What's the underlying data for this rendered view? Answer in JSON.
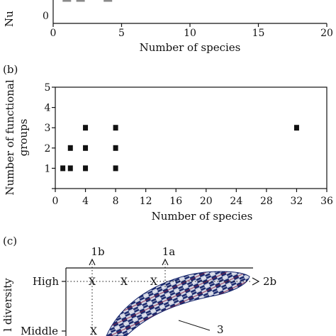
{
  "panels": {
    "a": {
      "y_tick_visible": "0",
      "ylabel_fragment": "Nu",
      "xlabel": "Number of species",
      "x_ticks": [
        "0",
        "5",
        "10",
        "15",
        "20"
      ],
      "markers_x": [
        1,
        2,
        4
      ]
    },
    "b": {
      "label": "(b)",
      "xlabel": "Number of species",
      "ylabel_line1": "Number of functional",
      "ylabel_line2": "groups",
      "x_ticks": [
        "0",
        "4",
        "8",
        "12",
        "16",
        "20",
        "24",
        "28",
        "32",
        "36"
      ],
      "y_ticks": [
        "1",
        "2",
        "3",
        "4",
        "5"
      ]
    },
    "c": {
      "label": "(c)",
      "arrow_1a": "1a",
      "arrow_1b": "1b",
      "arrow_2b": "2b",
      "ylabel_fragment": "l diversity",
      "y_high": "High",
      "y_middle": "Middle",
      "marker_x": "X",
      "callout": "3"
    }
  },
  "chart_data": [
    {
      "panel": "a",
      "type": "scatter",
      "xlabel": "Number of species",
      "xlim": [
        0,
        20
      ],
      "x_ticks": [
        0,
        5,
        10,
        15,
        20
      ],
      "points": [
        {
          "x": 1,
          "y": 0
        },
        {
          "x": 2,
          "y": 0
        },
        {
          "x": 4,
          "y": 0
        }
      ]
    },
    {
      "panel": "b",
      "type": "scatter",
      "xlabel": "Number of species",
      "ylabel": "Number of functional groups",
      "xlim": [
        0,
        36
      ],
      "ylim": [
        0,
        5
      ],
      "x_ticks": [
        0,
        4,
        8,
        12,
        16,
        20,
        24,
        28,
        32,
        36
      ],
      "y_ticks": [
        0,
        1,
        2,
        3,
        4,
        5
      ],
      "points": [
        {
          "x": 1,
          "y": 1
        },
        {
          "x": 2,
          "y": 1
        },
        {
          "x": 2,
          "y": 2
        },
        {
          "x": 4,
          "y": 1
        },
        {
          "x": 4,
          "y": 2
        },
        {
          "x": 4,
          "y": 3
        },
        {
          "x": 8,
          "y": 1
        },
        {
          "x": 8,
          "y": 2
        },
        {
          "x": 8,
          "y": 3
        },
        {
          "x": 32,
          "y": 3
        }
      ]
    },
    {
      "panel": "c",
      "type": "diagram",
      "y_levels": [
        "High",
        "Middle"
      ],
      "arrows": [
        "1a",
        "1b",
        "2b"
      ],
      "x_marks_count": 4,
      "shaded_region_label": "3"
    }
  ]
}
